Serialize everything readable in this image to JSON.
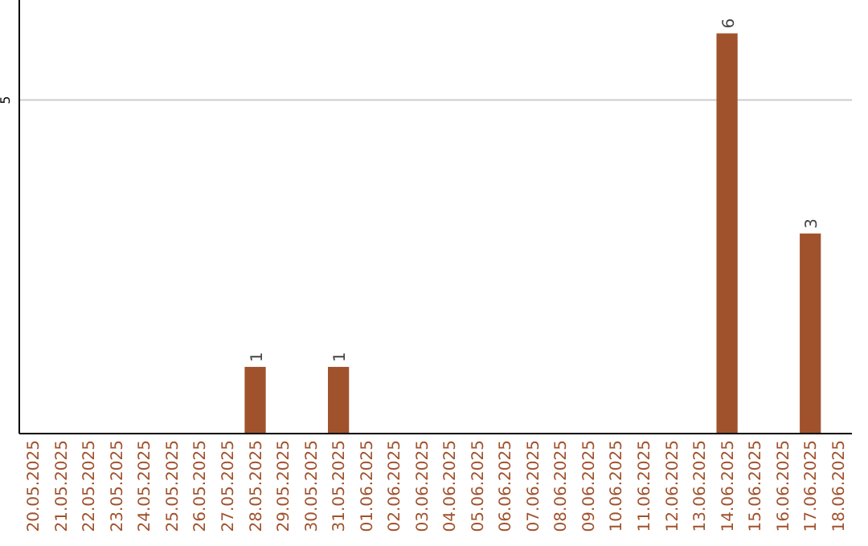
{
  "chart_data": {
    "type": "bar",
    "categories": [
      "20.05.2025",
      "21.05.2025",
      "22.05.2025",
      "23.05.2025",
      "24.05.2025",
      "25.05.2025",
      "26.05.2025",
      "27.05.2025",
      "28.05.2025",
      "29.05.2025",
      "30.05.2025",
      "31.05.2025",
      "01.06.2025",
      "02.06.2025",
      "03.06.2025",
      "04.06.2025",
      "05.06.2025",
      "06.06.2025",
      "07.06.2025",
      "08.06.2025",
      "09.06.2025",
      "10.06.2025",
      "11.06.2025",
      "12.06.2025",
      "13.06.2025",
      "14.06.2025",
      "15.06.2025",
      "16.06.2025",
      "17.06.2025",
      "18.06.2025"
    ],
    "values": [
      0,
      0,
      0,
      0,
      0,
      0,
      0,
      0,
      1,
      0,
      0,
      1,
      0,
      0,
      0,
      0,
      0,
      0,
      0,
      0,
      0,
      0,
      0,
      0,
      0,
      6,
      0,
      0,
      3,
      0
    ],
    "value_labels": [
      null,
      null,
      null,
      null,
      null,
      null,
      null,
      null,
      "1",
      null,
      null,
      "1",
      null,
      null,
      null,
      null,
      null,
      null,
      null,
      null,
      null,
      null,
      null,
      null,
      null,
      "6",
      null,
      null,
      "3",
      null
    ],
    "color": "#a0522d",
    "ylim": [
      0,
      6.5
    ],
    "yticks": [
      5
    ],
    "grid": "y"
  }
}
